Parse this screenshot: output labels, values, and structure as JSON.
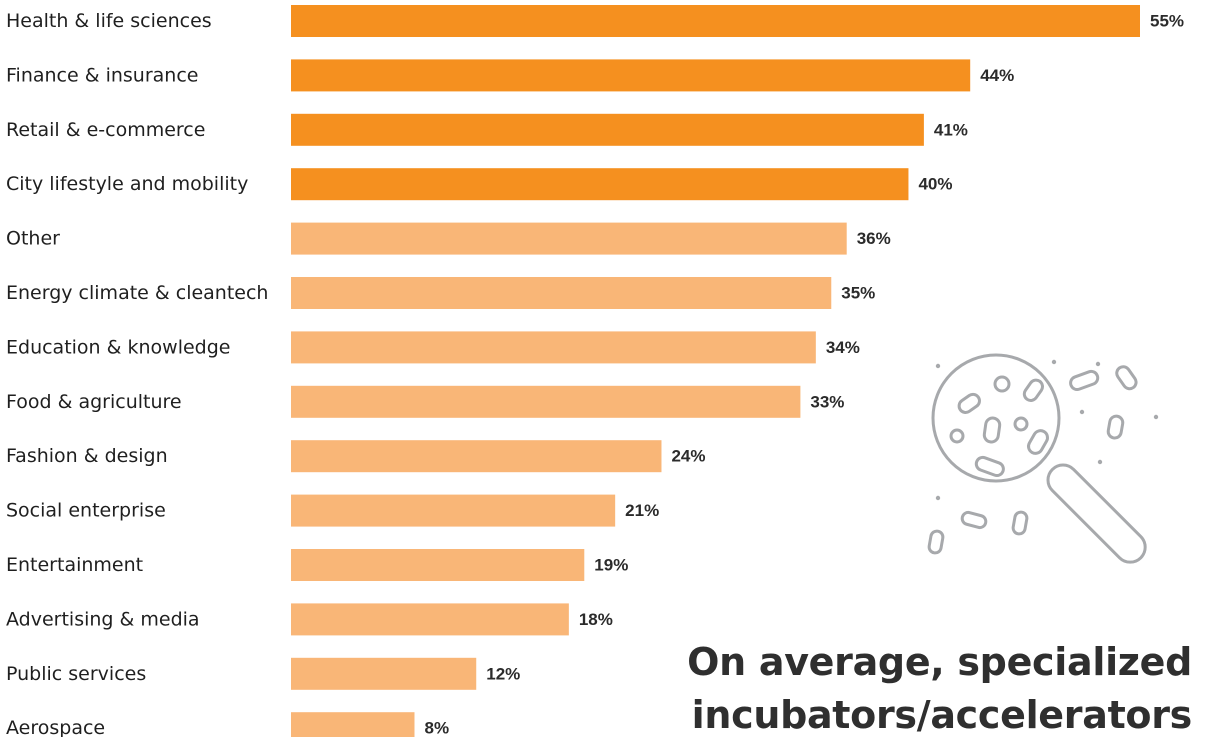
{
  "chart_data": {
    "type": "bar",
    "orientation": "horizontal",
    "categories": [
      "Health & life sciences",
      "Finance & insurance",
      "Retail & e-commerce",
      "City lifestyle and mobility",
      "Other",
      "Energy climate & cleantech",
      "Education & knowledge",
      "Food & agriculture",
      "Fashion & design",
      "Social enterprise",
      "Entertainment",
      "Advertising & media",
      "Public services",
      "Aerospace"
    ],
    "values": [
      55,
      44,
      41,
      40,
      36,
      35,
      34,
      33,
      24,
      21,
      19,
      18,
      12,
      8
    ],
    "value_labels": [
      "55%",
      "44%",
      "41%",
      "40%",
      "36%",
      "35%",
      "34%",
      "33%",
      "24%",
      "21%",
      "19%",
      "18%",
      "12%",
      "8%"
    ],
    "highlighted_count": 4,
    "xlim": [
      0,
      55
    ],
    "colors": {
      "highlight": "#f5901f",
      "base": "#f9b677"
    }
  },
  "callout": {
    "line1": "On average, specialized",
    "line2": "incubators/accelerators"
  },
  "illustration": {
    "icon": "magnifier-bacteria-icon",
    "color": "#a7a9ac"
  }
}
